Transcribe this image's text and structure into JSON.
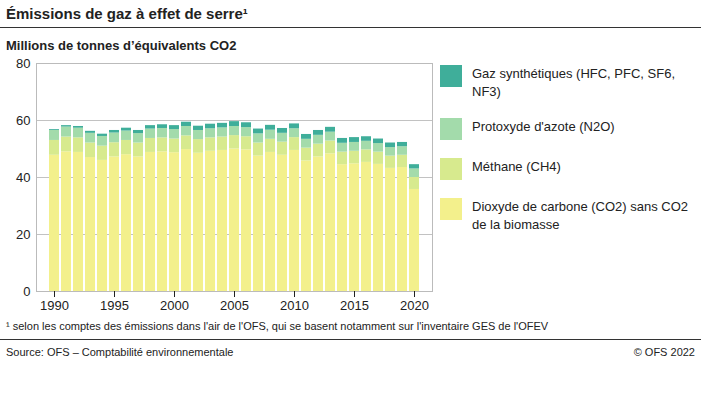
{
  "chart_data": {
    "type": "bar",
    "stacked": true,
    "title": "Émissions de gaz à effet de serre¹",
    "subtitle": "Millions de tonnes d’équivalents CO2",
    "footnote": "¹ selon les comptes des émissions dans l'air de l'OFS, qui se basent notamment sur l'inventaire GES de l'OFEV",
    "source": "Source: OFS – Comptabilité environnementale",
    "copyright": "© OFS 2022",
    "categories": [
      1990,
      1991,
      1992,
      1993,
      1994,
      1995,
      1996,
      1997,
      1998,
      1999,
      2000,
      2001,
      2002,
      2003,
      2004,
      2005,
      2006,
      2007,
      2008,
      2009,
      2010,
      2011,
      2012,
      2013,
      2014,
      2015,
      2016,
      2017,
      2018,
      2019,
      2020
    ],
    "series": [
      {
        "name": "Dioxyde de carbone (CO2) sans CO2 de la biomasse",
        "color": "#f3f08c",
        "values": [
          47.8,
          49.0,
          48.8,
          47.0,
          46.0,
          47.2,
          48.0,
          47.2,
          48.8,
          49.0,
          48.7,
          49.8,
          48.5,
          49.2,
          49.5,
          50.0,
          49.7,
          47.5,
          48.8,
          47.8,
          49.5,
          45.8,
          47.2,
          48.3,
          44.5,
          44.8,
          45.3,
          44.6,
          43.2,
          43.5,
          35.8
        ]
      },
      {
        "name": "Méthane (CH4)",
        "color": "#d7ea8e",
        "values": [
          5.2,
          5.2,
          5.1,
          5.1,
          5.0,
          5.0,
          5.0,
          4.9,
          4.9,
          4.9,
          4.8,
          4.8,
          4.8,
          4.7,
          4.7,
          4.7,
          4.6,
          4.6,
          4.6,
          4.6,
          4.5,
          4.5,
          4.5,
          4.5,
          4.4,
          4.4,
          4.4,
          4.3,
          4.3,
          4.3,
          4.2
        ]
      },
      {
        "name": "Protoxyde d'azote (N2O)",
        "color": "#a3dbab",
        "values": [
          3.5,
          3.5,
          3.4,
          3.4,
          3.4,
          3.4,
          3.3,
          3.3,
          3.3,
          3.3,
          3.3,
          3.3,
          3.2,
          3.2,
          3.2,
          3.2,
          3.2,
          3.2,
          3.2,
          3.1,
          3.1,
          3.1,
          3.1,
          3.1,
          3.1,
          3.1,
          3.0,
          3.0,
          3.0,
          3.0,
          3.0
        ]
      },
      {
        "name": "Gaz synthétiques (HFC, PFC, SF6, NF3)",
        "color": "#3fae9a",
        "values": [
          0.3,
          0.5,
          0.6,
          0.7,
          0.8,
          0.9,
          1.0,
          1.1,
          1.2,
          1.3,
          1.4,
          1.5,
          1.5,
          1.6,
          1.6,
          1.7,
          1.7,
          1.7,
          1.7,
          1.7,
          1.7,
          1.7,
          1.7,
          1.7,
          1.7,
          1.7,
          1.6,
          1.6,
          1.6,
          1.5,
          1.5
        ]
      }
    ],
    "xticks": [
      1990,
      1995,
      2000,
      2005,
      2010,
      2015,
      2020
    ],
    "ylim": [
      0,
      80
    ],
    "yticks": [
      0,
      20,
      40,
      60,
      80
    ],
    "grid": true,
    "legend": "right"
  }
}
